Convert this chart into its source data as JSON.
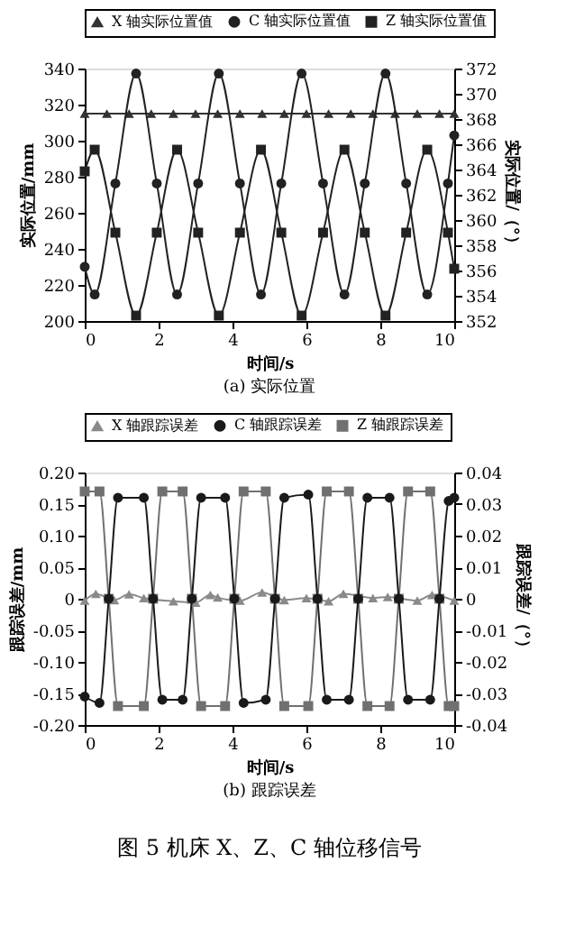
{
  "chart_data": [
    {
      "type": "line",
      "title": "(a) 实际位置",
      "xlabel": "时间/s",
      "ylabel": "实际位置/mm",
      "y2label": "实际位置/（°）",
      "xlim": [
        0,
        10
      ],
      "xticks": [
        0,
        2,
        4,
        6,
        8,
        10
      ],
      "ylim": [
        200,
        340
      ],
      "yticks": [
        200,
        220,
        240,
        260,
        280,
        300,
        320,
        340
      ],
      "y2lim": [
        352,
        372
      ],
      "y2ticks": [
        352,
        354,
        356,
        358,
        360,
        362,
        364,
        366,
        368,
        370,
        372
      ],
      "grid": false,
      "legend": "top",
      "line_style": "solid",
      "series": [
        {
          "name": "X 轴实际位置值",
          "color": "#333333",
          "marker": "triangle",
          "x": [
            0,
            0.6,
            1.2,
            1.8,
            2.4,
            3.0,
            3.6,
            4.2,
            4.8,
            5.4,
            6.0,
            6.6,
            7.2,
            7.8,
            8.4,
            9.0,
            9.6,
            10
          ],
          "values": [
            315,
            315,
            315,
            315,
            315,
            315,
            315,
            315,
            315,
            315,
            315,
            315,
            315,
            315,
            315,
            315,
            315,
            315
          ]
        },
        {
          "name": "C 轴实际位置值",
          "color": "#222222",
          "marker": "circle",
          "axis": "y2",
          "x": [
            0,
            0.27,
            0.83,
            1.39,
            1.95,
            2.5,
            3.07,
            3.63,
            4.2,
            4.77,
            5.32,
            5.87,
            6.45,
            7.03,
            7.58,
            8.14,
            8.7,
            9.27,
            9.83,
            10
          ],
          "values": [
            356.3,
            354.1,
            362.9,
            371.6,
            362.9,
            354.1,
            362.9,
            371.6,
            362.9,
            354.1,
            362.9,
            371.6,
            362.9,
            354.1,
            362.9,
            371.6,
            362.9,
            354.1,
            362.9,
            366.7
          ]
        },
        {
          "name": "Z 轴实际位置值",
          "color": "#222222",
          "marker": "square",
          "x": [
            0,
            0.27,
            0.83,
            1.39,
            1.95,
            2.5,
            3.07,
            3.63,
            4.2,
            4.77,
            5.32,
            5.87,
            6.45,
            7.03,
            7.58,
            8.14,
            8.7,
            9.27,
            9.83,
            10
          ],
          "values": [
            283,
            295,
            249,
            203,
            249,
            295,
            249,
            203,
            249,
            295,
            249,
            203,
            249,
            295,
            249,
            203,
            249,
            295,
            249,
            229
          ]
        }
      ]
    },
    {
      "type": "line",
      "title": "(b) 跟踪误差",
      "xlabel": "时间/s",
      "ylabel": "跟踪误差/mm",
      "y2label": "跟踪误差/（°）",
      "xlim": [
        0,
        10
      ],
      "xticks": [
        0,
        2,
        4,
        6,
        8,
        10
      ],
      "ylim": [
        -0.2,
        0.2
      ],
      "yticks": [
        {
          "value": -0.2,
          "label": "-0.20"
        },
        {
          "value": -0.15,
          "label": "-0.15"
        },
        {
          "value": -0.1,
          "label": "-0.10"
        },
        -0.05,
        0,
        0.05,
        {
          "value": 0.1,
          "label": "0.10"
        },
        0.15,
        {
          "value": 0.2,
          "label": "0.20"
        }
      ],
      "y2lim": [
        -0.04,
        0.04
      ],
      "y2ticks": [
        -0.04,
        -0.03,
        -0.02,
        -0.01,
        0,
        0.01,
        0.02,
        0.03,
        0.04
      ],
      "grid": false,
      "legend": "top",
      "line_style": "solid",
      "annotations": [
        "图 5 机床 X、Z、C 轴位移信号"
      ],
      "series": [
        {
          "name": "X 轴跟踪误差",
          "color": "#8a8a8a",
          "marker": "triangle",
          "x": [
            0,
            0.3,
            0.8,
            1.2,
            1.6,
            2.4,
            3.0,
            3.4,
            3.6,
            4.2,
            4.8,
            5.4,
            6.0,
            6.6,
            7.0,
            7.8,
            8.2,
            9.0,
            9.4,
            10
          ],
          "values": [
            -0.003,
            0.008,
            -0.002,
            0.007,
            0.001,
            -0.004,
            -0.006,
            0.006,
            0.002,
            -0.003,
            0.01,
            -0.002,
            0.001,
            -0.004,
            0.008,
            0.001,
            0.003,
            -0.003,
            0.006,
            -0.003
          ]
        },
        {
          "name": "C 轴跟踪误差",
          "color": "#1a1a1a",
          "marker": "circle",
          "axis": "y2",
          "x": [
            0,
            0.4,
            0.65,
            0.9,
            1.6,
            1.85,
            2.1,
            2.65,
            2.9,
            3.15,
            3.8,
            4.05,
            4.3,
            4.9,
            5.15,
            5.4,
            6.05,
            6.3,
            6.55,
            7.15,
            7.4,
            7.65,
            8.25,
            8.5,
            8.75,
            9.35,
            9.6,
            9.85,
            10
          ],
          "values": [
            -0.031,
            -0.033,
            0,
            0.032,
            0.032,
            0,
            -0.032,
            -0.032,
            0,
            0.032,
            0.032,
            0,
            -0.033,
            -0.032,
            0,
            0.032,
            0.033,
            0,
            -0.032,
            -0.032,
            0,
            0.032,
            0.032,
            0,
            -0.032,
            -0.032,
            0,
            0.031,
            0.032
          ]
        },
        {
          "name": "Z 轴跟踪误差",
          "color": "#707070",
          "marker": "square",
          "x": [
            0,
            0.4,
            0.65,
            0.9,
            1.6,
            1.85,
            2.1,
            2.65,
            2.9,
            3.15,
            3.8,
            4.05,
            4.3,
            4.9,
            5.15,
            5.4,
            6.05,
            6.3,
            6.55,
            7.15,
            7.4,
            7.65,
            8.25,
            8.5,
            8.75,
            9.35,
            9.6,
            9.85,
            10
          ],
          "values": [
            0.17,
            0.17,
            0,
            -0.17,
            -0.17,
            0,
            0.17,
            0.17,
            0,
            -0.17,
            -0.17,
            0,
            0.17,
            0.17,
            0,
            -0.17,
            -0.17,
            0,
            0.17,
            0.17,
            0,
            -0.17,
            -0.17,
            0,
            0.17,
            0.17,
            0,
            -0.17,
            -0.17
          ]
        }
      ]
    }
  ]
}
